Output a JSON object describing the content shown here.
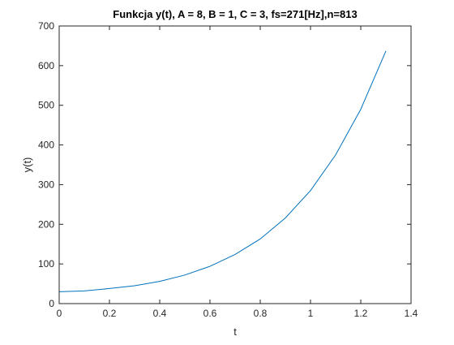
{
  "chart_data": {
    "type": "line",
    "title": "Funkcja y(t), A = 8, B = 1, C = 3, fs=271[Hz],n=813",
    "xlabel": "t",
    "ylabel": "y(t)",
    "xlim": [
      0,
      1.4
    ],
    "ylim": [
      0,
      700
    ],
    "xticks": [
      0,
      0.2,
      0.4,
      0.6,
      0.8,
      1,
      1.2,
      1.4
    ],
    "yticks": [
      0,
      100,
      200,
      300,
      400,
      500,
      600,
      700
    ],
    "xtick_labels": [
      "0",
      "0.2",
      "0.4",
      "0.6",
      "0.8",
      "1",
      "1.2",
      "1.4"
    ],
    "ytick_labels": [
      "0",
      "100",
      "200",
      "300",
      "400",
      "500",
      "600",
      "700"
    ],
    "grid": false,
    "line_color": "#0072BD",
    "series": [
      {
        "x": [
          0,
          0.1,
          0.2,
          0.3,
          0.4,
          0.5,
          0.6,
          0.7,
          0.8,
          0.9,
          1.0,
          1.1,
          1.2,
          1.3
        ],
        "values": [
          30,
          32,
          38,
          45,
          56,
          72,
          94,
          124,
          163,
          216,
          285,
          375,
          490,
          637
        ]
      }
    ]
  }
}
